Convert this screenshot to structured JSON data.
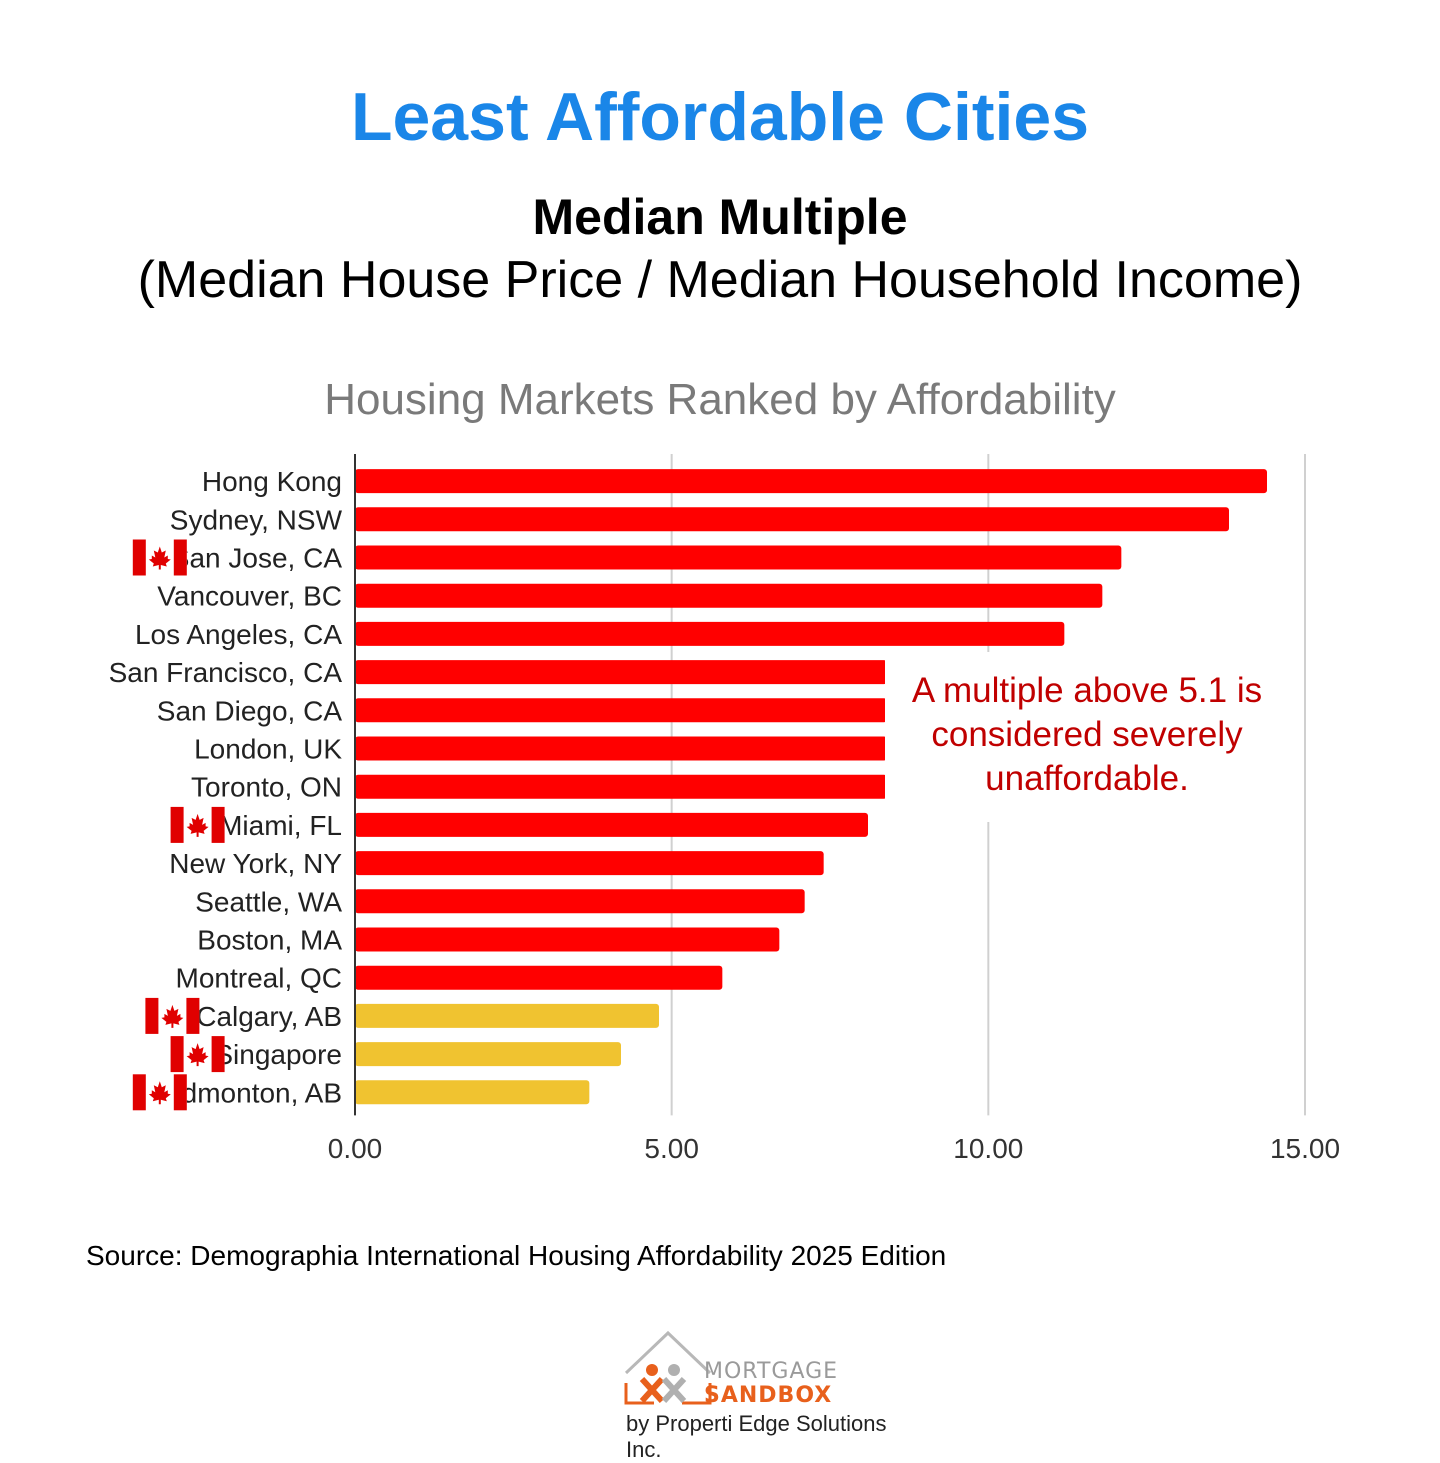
{
  "header": {
    "title": "Least Affordable Cities",
    "subtitle": "Median Multiple",
    "subtitle2": "(Median House Price / Median Household Income)"
  },
  "colors": {
    "title": "#1a86e8",
    "bar_red": "#ff0000",
    "bar_yellow": "#f0c330",
    "annotation": "#c00000",
    "grid": "#d0d0d0",
    "chart_title": "#7a7a7a"
  },
  "chart_data": {
    "type": "bar",
    "orientation": "horizontal",
    "title": "Housing Markets Ranked by Affordability",
    "categories": [
      "Hong Kong",
      "Sydney, NSW",
      "San Jose, CA",
      "Vancouver, BC",
      "Los Angeles, CA",
      "San Francisco, CA",
      "San Diego, CA",
      "London, UK",
      "Toronto, ON",
      "Miami, FL",
      "New York, NY",
      "Seattle, WA",
      "Boston, MA",
      "Montreal, QC",
      "Calgary, AB",
      "Singapore",
      "Edmonton, AB"
    ],
    "values": [
      14.4,
      13.8,
      12.1,
      11.8,
      11.2,
      8.4,
      8.4,
      8.4,
      8.4,
      8.1,
      7.4,
      7.1,
      6.7,
      5.8,
      4.8,
      4.2,
      3.7
    ],
    "bar_colors": [
      "red",
      "red",
      "red",
      "red",
      "red",
      "red",
      "red",
      "red",
      "red",
      "red",
      "red",
      "red",
      "red",
      "red",
      "yellow",
      "yellow",
      "yellow"
    ],
    "flag_icon": "canada-flag-icon",
    "flagged": [
      "San Jose, CA",
      "Miami, FL",
      "Calgary, AB",
      "Singapore",
      "Edmonton, AB"
    ],
    "xlim": [
      0,
      15
    ],
    "xticks": [
      "0.00",
      "5.00",
      "10.00",
      "15.00"
    ],
    "grid": true,
    "annotation": [
      "A multiple above 5.1 is",
      "considered severely",
      "unaffordable."
    ]
  },
  "footer": {
    "source": "Source: Demographia International Housing Affordability 2025 Edition",
    "logo_line1": "MORTGAGE",
    "logo_line2": "SANDBOX",
    "byline": "by Properti Edge Solutions Inc."
  }
}
